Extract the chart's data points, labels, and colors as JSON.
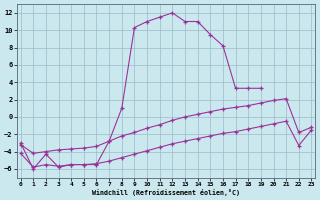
{
  "bg_color": "#cce8ef",
  "line_color": "#993399",
  "xlabel": "Windchill (Refroidissement éolien,°C)",
  "xlim": [
    -0.3,
    23.3
  ],
  "ylim": [
    -7,
    13
  ],
  "xticks": [
    0,
    1,
    2,
    3,
    4,
    5,
    6,
    7,
    8,
    9,
    10,
    11,
    12,
    13,
    14,
    15,
    16,
    17,
    18,
    19,
    20,
    21,
    22,
    23
  ],
  "yticks": [
    -6,
    -4,
    -2,
    0,
    2,
    4,
    6,
    8,
    10,
    12
  ],
  "line1_x": [
    0,
    1,
    2,
    3,
    4,
    5,
    6,
    7,
    8,
    9,
    10,
    11,
    12,
    13,
    14,
    15,
    16,
    17,
    18,
    19
  ],
  "line1_y": [
    -3.0,
    -6.0,
    -4.3,
    -5.8,
    -5.5,
    -5.5,
    -5.5,
    -2.8,
    1.0,
    10.3,
    11.0,
    11.5,
    12.0,
    11.0,
    11.0,
    9.5,
    8.2,
    3.3,
    3.3,
    3.3
  ],
  "line2_x": [
    0,
    1,
    2,
    3,
    4,
    5,
    6,
    7,
    8,
    9,
    10,
    11,
    12,
    13,
    14,
    15,
    16,
    17,
    18,
    19,
    20,
    21,
    22,
    23
  ],
  "line2_y": [
    -3.2,
    -4.2,
    -4.0,
    -3.8,
    -3.7,
    -3.6,
    -3.4,
    -2.8,
    -2.2,
    -1.8,
    -1.3,
    -0.9,
    -0.4,
    -0.0,
    0.3,
    0.6,
    0.9,
    1.1,
    1.3,
    1.6,
    1.9,
    2.1,
    -1.8,
    -1.2
  ],
  "line3_x": [
    0,
    1,
    2,
    3,
    4,
    5,
    6,
    7,
    8,
    9,
    10,
    11,
    12,
    13,
    14,
    15,
    16,
    17,
    18,
    19,
    20,
    21,
    22,
    23
  ],
  "line3_y": [
    -4.2,
    -5.8,
    -5.5,
    -5.7,
    -5.5,
    -5.5,
    -5.4,
    -5.1,
    -4.7,
    -4.3,
    -3.9,
    -3.5,
    -3.1,
    -2.8,
    -2.5,
    -2.2,
    -1.9,
    -1.7,
    -1.4,
    -1.1,
    -0.8,
    -0.5,
    -3.3,
    -1.5
  ],
  "grid_color": "#9bbbc8",
  "lw": 0.8,
  "ms": 3.5
}
